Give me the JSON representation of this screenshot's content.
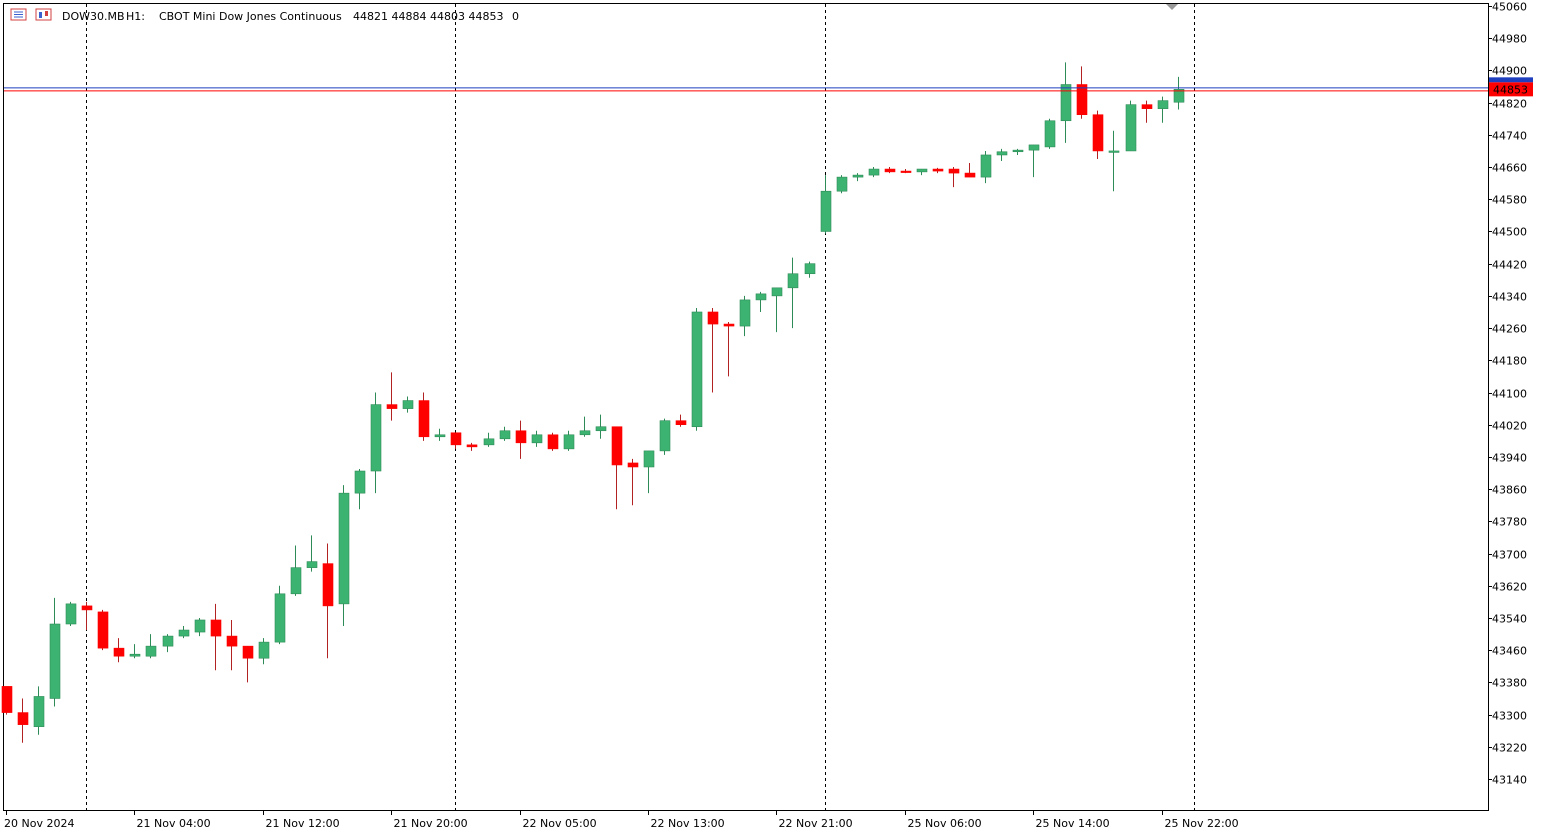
{
  "header": {
    "symbol": "DOW30.MB",
    "timeframe": "H1:",
    "description": "CBOT Mini Dow Jones Continuous",
    "ohlc": "44821 44884 44803 44853",
    "volume": "0"
  },
  "colors": {
    "bull": "#3cb371",
    "bear": "#ff0000",
    "bull_wick": "#2e8b57",
    "bear_wick": "#b22222",
    "price_line": "#1f3fbf",
    "bid_line": "#ff0000",
    "price_tag_bg": "#ff0000",
    "price_tag_top": "#1f3fbf"
  },
  "chart_data": {
    "type": "candlestick",
    "yaxis_ticks": [
      45060,
      44980,
      44900,
      44820,
      44740,
      44660,
      44580,
      44500,
      44420,
      44340,
      44260,
      44180,
      44100,
      44020,
      43940,
      43860,
      43780,
      43700,
      43620,
      43540,
      43460,
      43380,
      43300,
      43220,
      43140
    ],
    "ylim": [
      43060,
      45060
    ],
    "current_price": 44853,
    "current_price_label": "44853",
    "time_labels": [
      "20 Nov 2024",
      "21 Nov 04:00",
      "21 Nov 12:00",
      "21 Nov 20:00",
      "22 Nov 05:00",
      "22 Nov 13:00",
      "22 Nov 21:00",
      "25 Nov 06:00",
      "25 Nov 14:00",
      "25 Nov 22:00"
    ],
    "time_label_index": [
      0,
      8,
      16,
      24,
      32,
      40,
      48,
      56,
      64,
      72
    ],
    "period_separators_index": [
      5,
      28,
      51,
      74
    ],
    "candles": [
      {
        "o": 43370,
        "h": 43370,
        "l": 43300,
        "c": 43305
      },
      {
        "o": 43305,
        "h": 43340,
        "l": 43230,
        "c": 43275
      },
      {
        "o": 43270,
        "h": 43370,
        "l": 43250,
        "c": 43345
      },
      {
        "o": 43340,
        "h": 43590,
        "l": 43320,
        "c": 43525
      },
      {
        "o": 43525,
        "h": 43580,
        "l": 43520,
        "c": 43575
      },
      {
        "o": 43570,
        "h": 43580,
        "l": 43510,
        "c": 43560
      },
      {
        "o": 43555,
        "h": 43560,
        "l": 43460,
        "c": 43465
      },
      {
        "o": 43465,
        "h": 43490,
        "l": 43430,
        "c": 43445
      },
      {
        "o": 43445,
        "h": 43475,
        "l": 43440,
        "c": 43450
      },
      {
        "o": 43445,
        "h": 43500,
        "l": 43440,
        "c": 43470
      },
      {
        "o": 43470,
        "h": 43500,
        "l": 43455,
        "c": 43495
      },
      {
        "o": 43495,
        "h": 43520,
        "l": 43490,
        "c": 43510
      },
      {
        "o": 43505,
        "h": 43540,
        "l": 43495,
        "c": 43535
      },
      {
        "o": 43535,
        "h": 43575,
        "l": 43410,
        "c": 43495
      },
      {
        "o": 43495,
        "h": 43535,
        "l": 43410,
        "c": 43470
      },
      {
        "o": 43470,
        "h": 43470,
        "l": 43380,
        "c": 43440
      },
      {
        "o": 43440,
        "h": 43490,
        "l": 43425,
        "c": 43480
      },
      {
        "o": 43480,
        "h": 43620,
        "l": 43475,
        "c": 43600
      },
      {
        "o": 43600,
        "h": 43720,
        "l": 43595,
        "c": 43665
      },
      {
        "o": 43665,
        "h": 43745,
        "l": 43655,
        "c": 43680
      },
      {
        "o": 43675,
        "h": 43725,
        "l": 43440,
        "c": 43570
      },
      {
        "o": 43575,
        "h": 43870,
        "l": 43520,
        "c": 43850
      },
      {
        "o": 43850,
        "h": 43910,
        "l": 43810,
        "c": 43905
      },
      {
        "o": 43905,
        "h": 44100,
        "l": 43850,
        "c": 44070
      },
      {
        "o": 44070,
        "h": 44150,
        "l": 44030,
        "c": 44060
      },
      {
        "o": 44060,
        "h": 44090,
        "l": 44050,
        "c": 44080
      },
      {
        "o": 44080,
        "h": 44100,
        "l": 43980,
        "c": 43990
      },
      {
        "o": 43990,
        "h": 44010,
        "l": 43980,
        "c": 43995
      },
      {
        "o": 44000,
        "h": 44000,
        "l": 43960,
        "c": 43970
      },
      {
        "o": 43970,
        "h": 43975,
        "l": 43955,
        "c": 43965
      },
      {
        "o": 43970,
        "h": 44000,
        "l": 43965,
        "c": 43985
      },
      {
        "o": 43985,
        "h": 44015,
        "l": 43980,
        "c": 44005
      },
      {
        "o": 44005,
        "h": 44030,
        "l": 43935,
        "c": 43975
      },
      {
        "o": 43975,
        "h": 44005,
        "l": 43965,
        "c": 43995
      },
      {
        "o": 43995,
        "h": 44000,
        "l": 43955,
        "c": 43960
      },
      {
        "o": 43960,
        "h": 44005,
        "l": 43955,
        "c": 43995
      },
      {
        "o": 43995,
        "h": 44040,
        "l": 43990,
        "c": 44005
      },
      {
        "o": 44005,
        "h": 44045,
        "l": 43985,
        "c": 44015
      },
      {
        "o": 44015,
        "h": 44015,
        "l": 43810,
        "c": 43920
      },
      {
        "o": 43925,
        "h": 43935,
        "l": 43820,
        "c": 43915
      },
      {
        "o": 43915,
        "h": 43955,
        "l": 43850,
        "c": 43955
      },
      {
        "o": 43955,
        "h": 44035,
        "l": 43945,
        "c": 44030
      },
      {
        "o": 44030,
        "h": 44045,
        "l": 44015,
        "c": 44020
      },
      {
        "o": 44015,
        "h": 44310,
        "l": 44005,
        "c": 44300
      },
      {
        "o": 44300,
        "h": 44310,
        "l": 44100,
        "c": 44270
      },
      {
        "o": 44270,
        "h": 44275,
        "l": 44140,
        "c": 44265
      },
      {
        "o": 44265,
        "h": 44340,
        "l": 44240,
        "c": 44330
      },
      {
        "o": 44330,
        "h": 44350,
        "l": 44300,
        "c": 44345
      },
      {
        "o": 44340,
        "h": 44360,
        "l": 44250,
        "c": 44360
      },
      {
        "o": 44360,
        "h": 44435,
        "l": 44260,
        "c": 44395
      },
      {
        "o": 44395,
        "h": 44425,
        "l": 44385,
        "c": 44420
      },
      {
        "o": 44500,
        "h": 44640,
        "l": 44495,
        "c": 44600
      },
      {
        "o": 44600,
        "h": 44640,
        "l": 44595,
        "c": 44635
      },
      {
        "o": 44635,
        "h": 44645,
        "l": 44625,
        "c": 44640
      },
      {
        "o": 44640,
        "h": 44660,
        "l": 44635,
        "c": 44655
      },
      {
        "o": 44655,
        "h": 44660,
        "l": 44645,
        "c": 44648
      },
      {
        "o": 44650,
        "h": 44655,
        "l": 44645,
        "c": 44648
      },
      {
        "o": 44648,
        "h": 44655,
        "l": 44640,
        "c": 44655
      },
      {
        "o": 44655,
        "h": 44658,
        "l": 44645,
        "c": 44650
      },
      {
        "o": 44655,
        "h": 44660,
        "l": 44610,
        "c": 44645
      },
      {
        "o": 44645,
        "h": 44670,
        "l": 44635,
        "c": 44635
      },
      {
        "o": 44635,
        "h": 44700,
        "l": 44620,
        "c": 44690
      },
      {
        "o": 44690,
        "h": 44705,
        "l": 44675,
        "c": 44698
      },
      {
        "o": 44698,
        "h": 44705,
        "l": 44690,
        "c": 44702
      },
      {
        "o": 44702,
        "h": 44715,
        "l": 44635,
        "c": 44715
      },
      {
        "o": 44710,
        "h": 44780,
        "l": 44705,
        "c": 44775
      },
      {
        "o": 44775,
        "h": 44920,
        "l": 44720,
        "c": 44865
      },
      {
        "o": 44865,
        "h": 44910,
        "l": 44780,
        "c": 44790
      },
      {
        "o": 44790,
        "h": 44800,
        "l": 44680,
        "c": 44700
      },
      {
        "o": 44700,
        "h": 44750,
        "l": 44600,
        "c": 44700
      },
      {
        "o": 44700,
        "h": 44825,
        "l": 44700,
        "c": 44815
      },
      {
        "o": 44815,
        "h": 44825,
        "l": 44770,
        "c": 44805
      },
      {
        "o": 44805,
        "h": 44835,
        "l": 44770,
        "c": 44825
      },
      {
        "o": 44821,
        "h": 44884,
        "l": 44803,
        "c": 44853
      }
    ]
  }
}
